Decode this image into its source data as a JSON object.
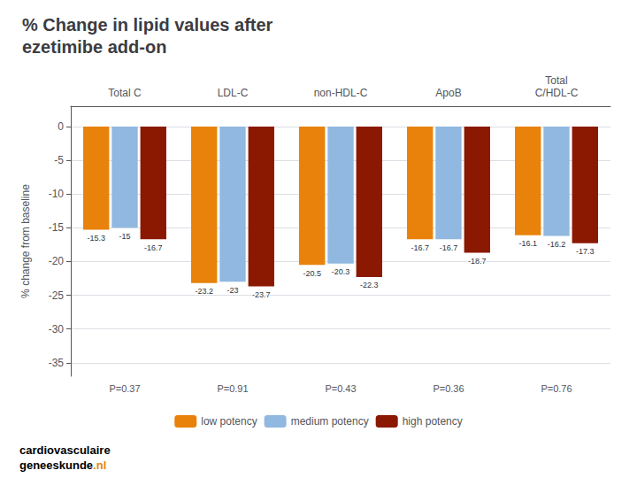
{
  "chart_data": {
    "type": "bar",
    "title": "% Change in lipid values after\nezetimibe add-on",
    "categories": [
      "Total C",
      "LDL-C",
      "non-HDL-C",
      "ApoB",
      "Total\nC/HDL-C"
    ],
    "series": [
      {
        "name": "low potency",
        "color": "#E8820A",
        "values": [
          -15.3,
          -23.2,
          -20.5,
          -16.7,
          -16.1
        ]
      },
      {
        "name": "medium potency",
        "color": "#90B8E0",
        "values": [
          -15.0,
          -23.0,
          -20.3,
          -16.7,
          -16.2
        ]
      },
      {
        "name": "high potency",
        "color": "#8B1800",
        "values": [
          -16.7,
          -23.7,
          -22.3,
          -18.7,
          -17.3
        ]
      }
    ],
    "ylabel": "% change from baseline",
    "ylim": [
      -37,
      3
    ],
    "yticks": [
      0,
      -5,
      -10,
      -15,
      -20,
      -25,
      -30,
      -35
    ],
    "grid": true,
    "legend": "bottom",
    "data_labels": true,
    "annotations": [
      {
        "text": "P=0.37",
        "category": "Total C"
      },
      {
        "text": "P=0.91",
        "category": "LDL-C"
      },
      {
        "text": "P=0.43",
        "category": "non-HDL-C"
      },
      {
        "text": "P=0.36",
        "category": "ApoB"
      },
      {
        "text": "P=0.76",
        "category": "Total\nC/HDL-C"
      },
      {
        "text": "cardiovasculaire"
      },
      {
        "text": "geneeskunde"
      },
      {
        "text": ".nl",
        "color": "#E8820A"
      }
    ]
  }
}
